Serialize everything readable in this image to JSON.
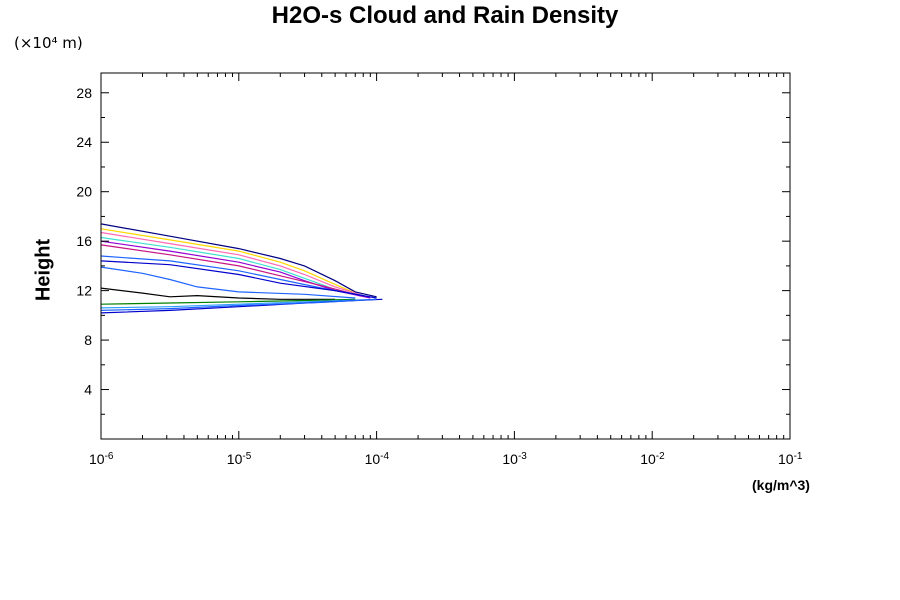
{
  "chart_data": {
    "type": "line",
    "title": "H2O-s Cloud and Rain Density",
    "y_unit_label": "(×10⁴ m)",
    "ylabel": "Height",
    "xunit": "(kg/m^3)",
    "xscale": "log",
    "xlim": [
      1e-06,
      0.1
    ],
    "ylim": [
      0,
      29.6
    ],
    "x_ticks": [
      {
        "base": "10",
        "exp": "-6",
        "value": 1e-06
      },
      {
        "base": "10",
        "exp": "-5",
        "value": 1e-05
      },
      {
        "base": "10",
        "exp": "-4",
        "value": 0.0001
      },
      {
        "base": "10",
        "exp": "-3",
        "value": 0.001
      },
      {
        "base": "10",
        "exp": "-2",
        "value": 0.01
      },
      {
        "base": "10",
        "exp": "-1",
        "value": 0.1
      }
    ],
    "y_ticks": [
      "4",
      "8",
      "12",
      "16",
      "20",
      "24",
      "28"
    ],
    "series": [
      {
        "color": "#000080",
        "x": [
          1e-06,
          3.16e-06,
          1e-05,
          2e-05,
          3e-05,
          5e-05,
          7e-05,
          0.0001
        ],
        "y": [
          17.4,
          16.4,
          15.4,
          14.6,
          14.0,
          12.8,
          11.9,
          11.5
        ]
      },
      {
        "color": "#ffd700",
        "x": [
          1e-06,
          3.16e-06,
          1e-05,
          2e-05,
          3e-05,
          5e-05,
          7e-05
        ],
        "y": [
          17.0,
          16.1,
          15.2,
          14.3,
          13.6,
          12.5,
          11.8
        ]
      },
      {
        "color": "#ff69b4",
        "x": [
          1e-06,
          3.16e-06,
          1e-05,
          2e-05,
          3e-05,
          5e-05,
          8e-05
        ],
        "y": [
          16.7,
          15.8,
          14.9,
          14.0,
          13.3,
          12.3,
          11.6
        ]
      },
      {
        "color": "#40e0d0",
        "x": [
          1e-06,
          3.16e-06,
          1e-05,
          2e-05,
          3e-05,
          5e-05
        ],
        "y": [
          16.3,
          15.5,
          14.6,
          13.7,
          13.0,
          12.1
        ]
      },
      {
        "color": "#9400d3",
        "x": [
          1e-06,
          3.16e-06,
          1e-05,
          2e-05,
          3e-05,
          5e-05,
          9e-05
        ],
        "y": [
          16.0,
          15.2,
          14.3,
          13.5,
          12.8,
          12.0,
          11.4
        ]
      },
      {
        "color": "#c71585",
        "x": [
          1e-06,
          3.16e-06,
          1e-05,
          2e-05,
          4e-05,
          7e-05
        ],
        "y": [
          15.7,
          14.9,
          14.0,
          13.2,
          12.4,
          11.7
        ]
      },
      {
        "color": "#1e64ff",
        "x": [
          1e-06,
          3.16e-06,
          1e-05,
          2e-05,
          4e-05,
          8e-05
        ],
        "y": [
          14.8,
          14.4,
          13.6,
          12.9,
          12.2,
          11.6
        ]
      },
      {
        "color": "#0000cd",
        "x": [
          1e-06,
          3.16e-06,
          1e-05,
          2e-05,
          5e-05,
          0.0001
        ],
        "y": [
          14.4,
          14.1,
          13.3,
          12.6,
          12.0,
          11.4
        ]
      },
      {
        "color": "#1e64ff",
        "x": [
          1e-06,
          2e-06,
          3.16e-06,
          5e-06,
          1e-05,
          3e-05,
          7e-05
        ],
        "y": [
          13.9,
          13.4,
          12.9,
          12.3,
          11.9,
          11.7,
          11.4
        ]
      },
      {
        "color": "#000000",
        "x": [
          1e-06,
          2e-06,
          3.16e-06,
          5e-06,
          1e-05,
          2e-05,
          5e-05
        ],
        "y": [
          12.2,
          11.8,
          11.5,
          11.6,
          11.4,
          11.3,
          11.3
        ]
      },
      {
        "color": "#008000",
        "x": [
          1e-06,
          3.16e-06,
          1e-05,
          3e-05,
          7e-05
        ],
        "y": [
          10.9,
          11.0,
          11.1,
          11.2,
          11.3
        ]
      },
      {
        "color": "#2f9fff",
        "x": [
          1e-06,
          3.16e-06,
          1e-05,
          3e-05,
          0.0001
        ],
        "y": [
          10.6,
          10.7,
          10.9,
          11.1,
          11.3
        ]
      },
      {
        "color": "#0000cd",
        "x": [
          1e-06,
          3.16e-06,
          1e-05,
          3e-05,
          0.00011
        ],
        "y": [
          10.2,
          10.4,
          10.7,
          11.0,
          11.3
        ]
      },
      {
        "color": "#1e64ff",
        "x": [
          1e-06,
          3.16e-06,
          1e-05,
          4e-05,
          0.0001
        ],
        "y": [
          10.4,
          10.55,
          10.8,
          11.05,
          11.3
        ]
      }
    ]
  }
}
